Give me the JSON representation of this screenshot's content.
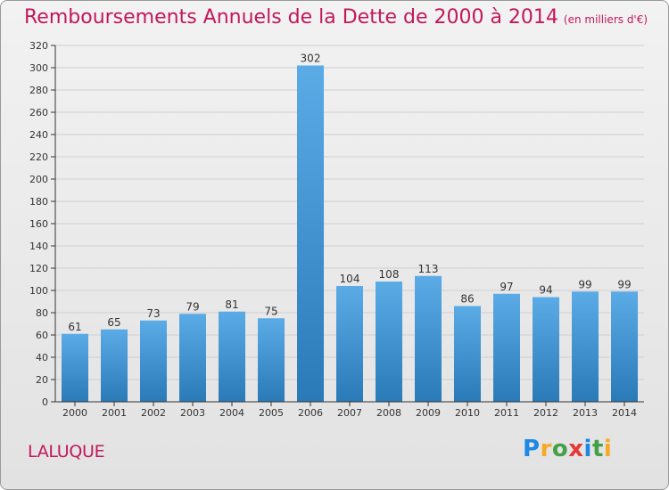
{
  "title": "Remboursements Annuels de la Dette de 2000 à 2014",
  "subtitle": "(en milliers d'€)",
  "commune": "LALUQUE",
  "brand": {
    "p": "P",
    "r": "r",
    "o": "o",
    "x": "x",
    "i1": "i",
    "t": "t",
    "i2": "i"
  },
  "chart_data": {
    "type": "bar",
    "title": "Remboursements Annuels de la Dette de 2000 à 2014",
    "subtitle": "(en milliers d'€)",
    "categories": [
      "2000",
      "2001",
      "2002",
      "2003",
      "2004",
      "2005",
      "2006",
      "2007",
      "2008",
      "2009",
      "2010",
      "2011",
      "2012",
      "2013",
      "2014"
    ],
    "values": [
      61,
      65,
      73,
      79,
      81,
      75,
      302,
      104,
      108,
      113,
      86,
      97,
      94,
      99,
      99
    ],
    "ylim": [
      0,
      320
    ],
    "yticks": [
      0,
      20,
      40,
      60,
      80,
      100,
      120,
      140,
      160,
      180,
      200,
      220,
      240,
      260,
      280,
      300,
      320
    ],
    "grid": true,
    "legend": "none",
    "colors": {
      "bar_light": "#5aabe6",
      "bar_dark": "#2a7ab8",
      "grid": "#cfcfcf",
      "axis": "#333333",
      "title": "#c2185b"
    }
  }
}
